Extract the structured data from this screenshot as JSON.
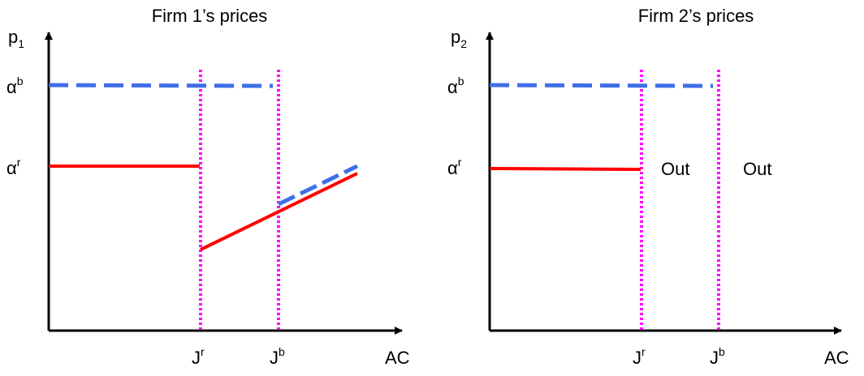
{
  "panels": [
    {
      "title": "Firm 1’s prices",
      "y_axis": {
        "base": "p",
        "sub": "1"
      },
      "x_axis": "AC",
      "y_ticks": [
        {
          "base": "α",
          "sup": "b"
        },
        {
          "base": "α",
          "sup": "r"
        }
      ],
      "x_ticks": [
        {
          "base": "J",
          "sup": "r"
        },
        {
          "base": "J",
          "sup": "b"
        }
      ],
      "labels": []
    },
    {
      "title": "Firm 2’s prices",
      "y_axis": {
        "base": "p",
        "sub": "2"
      },
      "x_axis": "AC",
      "y_ticks": [
        {
          "base": "α",
          "sup": "b"
        },
        {
          "base": "α",
          "sup": "r"
        }
      ],
      "x_ticks": [
        {
          "base": "J",
          "sup": "r"
        },
        {
          "base": "J",
          "sup": "b"
        }
      ],
      "labels": [
        "Out",
        "Out"
      ]
    }
  ],
  "colors": {
    "red_line": "#ff0000",
    "blue_dashed": "#3f6fe6",
    "magenta_dotted": "#ff00ff",
    "axis": "#000000"
  }
}
